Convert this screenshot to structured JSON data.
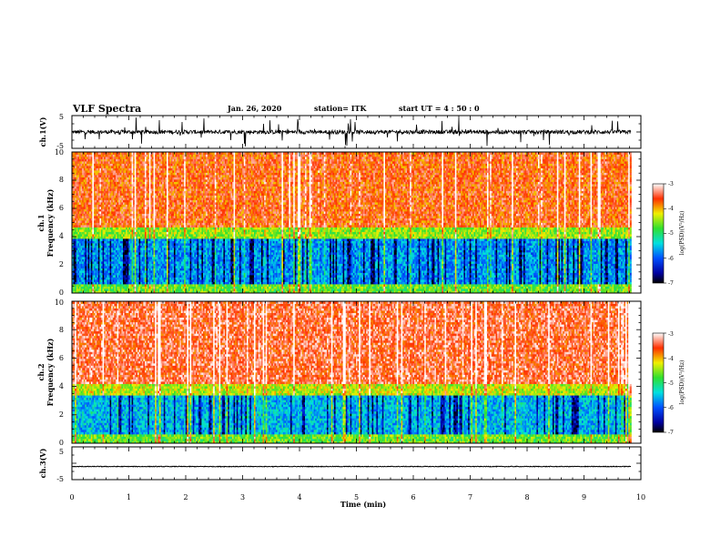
{
  "header": {
    "title": "VLF Spectra",
    "date": "Jan. 26, 2020",
    "station": "station= ITK",
    "start": "start UT = 4 : 50 : 0"
  },
  "chart_data": [
    {
      "id": "ch1-waveform",
      "type": "line",
      "ylabel": "ch.1(V)",
      "ylim": [
        -5,
        5
      ],
      "yticks": [
        "5",
        "-5"
      ],
      "xlim": [
        0,
        10
      ],
      "data_extent": [
        0,
        9.83
      ],
      "series": [
        {
          "baseline": 0,
          "noise_amplitude": 0.6,
          "spike_amplitude": 4.5
        }
      ]
    },
    {
      "id": "ch1-spectrogram",
      "type": "heatmap",
      "ylabel": "ch.1",
      "ylabel2": "Frequency (kHz)",
      "ylim": [
        0,
        10
      ],
      "yticks": [
        "0",
        "2",
        "4",
        "6",
        "8",
        "10"
      ],
      "xlim": [
        0,
        10
      ],
      "data_extent": [
        0,
        9.83
      ],
      "low_band_top_khz": 3.8,
      "colorbar": {
        "label": "log(PSD)(V²/Hz)",
        "range": [
          -7,
          -3
        ],
        "ticks": [
          "-3",
          "-4",
          "-5",
          "-6",
          "-7"
        ]
      }
    },
    {
      "id": "ch2-spectrogram",
      "type": "heatmap",
      "ylabel": "ch.2",
      "ylabel2": "Frequency (kHz)",
      "ylim": [
        0,
        10
      ],
      "yticks": [
        "0",
        "2",
        "4",
        "6",
        "8",
        "10"
      ],
      "xlim": [
        0,
        10
      ],
      "data_extent": [
        0,
        9.83
      ],
      "low_band_top_khz": 3.4,
      "colorbar": {
        "label": "log(PSD)(V²/Hz)",
        "range": [
          -7,
          -3
        ],
        "ticks": [
          "-3",
          "-4",
          "-5",
          "-6",
          "-7"
        ]
      }
    },
    {
      "id": "ch3-waveform",
      "type": "line",
      "ylabel": "ch.3(V)",
      "ylim": [
        -5,
        5
      ],
      "yticks": [
        "5",
        "-5"
      ],
      "xlim": [
        0,
        10
      ],
      "data_extent": [
        0,
        9.83
      ],
      "series": [
        {
          "baseline": -1.0,
          "noise_amplitude": 0.1
        }
      ]
    }
  ],
  "xaxis": {
    "label": "Time (min)",
    "ticks": [
      "0",
      "1",
      "2",
      "3",
      "4",
      "5",
      "6",
      "7",
      "8",
      "9",
      "10"
    ]
  }
}
